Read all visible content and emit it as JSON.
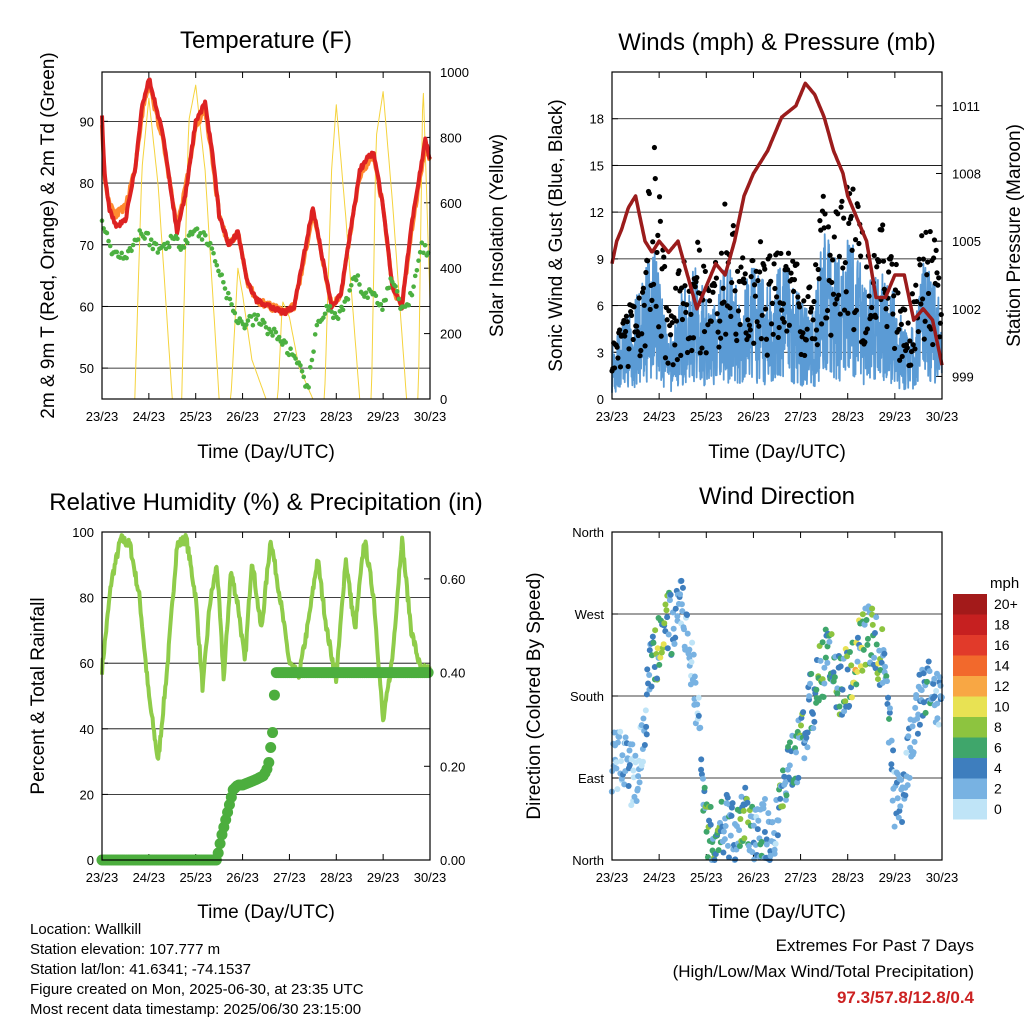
{
  "chart_data": [
    {
      "type": "line",
      "title": "Temperature (F)",
      "xlabel": "Time (Day/UTC)",
      "ylabel": "2m & 9m T (Red, Orange) & 2m Td (Green)",
      "ylabel_right": "Solar Insolation (Yellow)",
      "x_ticks": [
        "23/23",
        "24/23",
        "25/23",
        "26/23",
        "27/23",
        "28/23",
        "29/23",
        "30/23"
      ],
      "ylim": [
        45,
        98
      ],
      "yticks": [
        50,
        60,
        70,
        80,
        90
      ],
      "ylim_right": [
        0,
        1000
      ],
      "yticks_right": [
        0,
        200,
        400,
        600,
        800,
        1000
      ],
      "colors": {
        "t2m": "#dd2222",
        "t9m": "#ff8a30",
        "td": "#4cb040",
        "solar": "#f5d33d"
      },
      "series": [
        {
          "name": "2m T",
          "x": [
            0,
            0.05,
            0.15,
            0.3,
            0.5,
            0.7,
            0.85,
            1.0,
            1.3,
            1.6,
            1.8,
            2.0,
            2.2,
            2.35,
            2.5,
            2.7,
            2.9,
            3.1,
            3.3,
            3.6,
            3.9,
            4.1,
            4.3,
            4.5,
            4.7,
            4.9,
            5.1,
            5.3,
            5.5,
            5.65,
            5.8,
            6.0,
            6.2,
            6.4,
            6.6,
            6.75,
            6.9,
            7.0
          ],
          "values": [
            91,
            82,
            76,
            73,
            74,
            82,
            92,
            97,
            88,
            72,
            79,
            90,
            93,
            85,
            75,
            70,
            72,
            64,
            61,
            60,
            59,
            60,
            68,
            76,
            68,
            60,
            62,
            72,
            82,
            84,
            85,
            76,
            63,
            60,
            73,
            80,
            87,
            84
          ]
        },
        {
          "name": "9m T",
          "x": [
            0,
            0.05,
            0.15,
            0.3,
            0.5,
            0.7,
            0.85,
            1.0,
            1.3,
            1.6,
            1.8,
            2.0,
            2.2,
            2.35,
            2.5,
            2.7,
            2.9,
            3.1,
            3.3,
            3.6,
            3.9,
            4.1,
            4.3,
            4.5,
            4.7,
            4.9,
            5.1,
            5.3,
            5.5,
            5.65,
            5.8,
            6.0,
            6.2,
            6.4,
            6.6,
            6.75,
            6.9,
            7.0
          ],
          "values": [
            90,
            81,
            77,
            75,
            76,
            82,
            91,
            96,
            87,
            73,
            80,
            89,
            92,
            84,
            75,
            70,
            72,
            64,
            61,
            60,
            59,
            60,
            67,
            75,
            68,
            60,
            62,
            72,
            81,
            83,
            84,
            76,
            63,
            60,
            72,
            79,
            86,
            84
          ]
        },
        {
          "name": "2m Td",
          "x": [
            0,
            0.15,
            0.35,
            0.6,
            0.8,
            1.0,
            1.2,
            1.5,
            1.7,
            1.9,
            2.1,
            2.3,
            2.5,
            2.8,
            3.0,
            3.3,
            3.6,
            3.9,
            4.2,
            4.4,
            4.6,
            4.8,
            5.0,
            5.2,
            5.4,
            5.6,
            5.8,
            6.0,
            6.2,
            6.4,
            6.6,
            6.8,
            7.0
          ],
          "values": [
            74,
            70,
            68,
            69,
            72,
            71,
            69,
            71,
            70,
            72,
            72,
            70,
            66,
            59,
            57,
            58,
            56,
            54,
            50,
            47,
            57,
            60,
            58,
            60,
            65,
            62,
            62,
            60,
            65,
            59,
            62,
            70,
            68
          ]
        },
        {
          "name": "Solar",
          "x": [
            0,
            0.15,
            0.3,
            0.5,
            0.7,
            0.85,
            1.0,
            1.2,
            1.5,
            1.7,
            1.85,
            2.0,
            2.2,
            2.5,
            2.75,
            2.9,
            3.0,
            3.2,
            3.5,
            3.75,
            3.85,
            4.0,
            4.2,
            4.5,
            4.75,
            4.9,
            5.0,
            5.2,
            5.5,
            5.75,
            5.85,
            6.0,
            6.2,
            6.5,
            6.75,
            6.85,
            7.0
          ],
          "values": [
            0,
            0,
            0,
            0,
            0,
            700,
            920,
            650,
            0,
            0,
            850,
            960,
            700,
            0,
            0,
            400,
            320,
            120,
            0,
            0,
            300,
            250,
            100,
            0,
            0,
            700,
            900,
            560,
            0,
            0,
            800,
            940,
            600,
            0,
            0,
            980,
            300
          ]
        }
      ]
    },
    {
      "type": "line",
      "title": "Winds (mph) & Pressure (mb)",
      "xlabel": "Time (Day/UTC)",
      "ylabel": "Sonic Wind & Gust (Blue, Black)",
      "ylabel_right": "Station Pressure (Maroon)",
      "x_ticks": [
        "23/23",
        "24/23",
        "25/23",
        "26/23",
        "27/23",
        "28/23",
        "29/23",
        "30/23"
      ],
      "ylim": [
        0,
        21
      ],
      "yticks": [
        0,
        3,
        6,
        9,
        12,
        15,
        18
      ],
      "ylim_right": [
        998,
        1012.5
      ],
      "yticks_right": [
        999,
        1002,
        1005,
        1008,
        1011
      ],
      "colors": {
        "wind": "#5b9bd5",
        "gust": "#000000",
        "pressure": "#9b1c1c"
      },
      "series": [
        {
          "name": "Pressure",
          "x": [
            0,
            0.1,
            0.2,
            0.35,
            0.5,
            0.7,
            0.85,
            1.0,
            1.2,
            1.4,
            1.6,
            1.8,
            2.0,
            2.2,
            2.4,
            2.6,
            2.8,
            3.0,
            3.3,
            3.6,
            3.9,
            4.1,
            4.3,
            4.5,
            4.7,
            4.9,
            5.0,
            5.2,
            5.4,
            5.6,
            5.8,
            6.0,
            6.2,
            6.4,
            6.6,
            6.8,
            7.0
          ],
          "values": [
            1004,
            1005,
            1005.5,
            1006.5,
            1007,
            1005,
            1004.5,
            1005,
            1004.5,
            1005,
            1003.5,
            1002,
            1003,
            1004,
            1003.5,
            1005,
            1007,
            1008,
            1009,
            1010.5,
            1011,
            1012,
            1011.5,
            1010.5,
            1009,
            1008,
            1007,
            1006,
            1005,
            1002.5,
            1002.5,
            1003.5,
            1003.5,
            1001.5,
            1002,
            1001.5,
            999.5
          ]
        },
        {
          "name": "Wind",
          "x": [
            0,
            0.3,
            0.6,
            0.9,
            1.2,
            1.5,
            1.8,
            2.1,
            2.4,
            2.7,
            3.0,
            3.3,
            3.6,
            3.9,
            4.2,
            4.5,
            4.8,
            5.1,
            5.4,
            5.7,
            6.0,
            6.3,
            6.6,
            6.9,
            7.0
          ],
          "values": [
            2,
            3,
            4,
            6,
            2,
            4,
            5,
            3,
            5,
            4,
            5,
            4,
            5,
            4,
            3,
            6,
            5,
            6,
            4,
            5,
            4,
            2,
            5,
            4,
            3
          ]
        },
        {
          "name": "Gust",
          "x": [
            0,
            0.3,
            0.6,
            0.9,
            1.2,
            1.5,
            1.8,
            2.1,
            2.4,
            2.7,
            3.0,
            3.3,
            3.6,
            3.9,
            4.2,
            4.5,
            4.8,
            5.1,
            5.4,
            5.7,
            6.0,
            6.3,
            6.6,
            6.9,
            7.0
          ],
          "values": [
            4,
            5,
            7,
            15,
            5,
            8,
            9,
            6,
            12,
            8,
            10,
            8,
            9,
            8,
            7,
            12,
            11,
            13,
            9,
            10,
            8,
            5,
            10,
            9,
            6
          ]
        }
      ]
    },
    {
      "type": "line",
      "title": "Relative Humidity (%) & Precipitation (in)",
      "xlabel": "Time (Day/UTC)",
      "ylabel": "Percent & Total Rainfall",
      "x_ticks": [
        "23/23",
        "24/23",
        "25/23",
        "26/23",
        "27/23",
        "28/23",
        "29/23",
        "30/23"
      ],
      "ylim": [
        0,
        100
      ],
      "yticks": [
        0,
        20,
        40,
        60,
        80,
        100
      ],
      "ylim_right": [
        0,
        0.7
      ],
      "yticks_right": [
        "0.00",
        "0.20",
        "0.40",
        "0.60"
      ],
      "colors": {
        "rh": "#8fcc4a",
        "precip": "#4cae3e"
      },
      "series": [
        {
          "name": "RH",
          "x": [
            0,
            0.2,
            0.4,
            0.6,
            0.8,
            1.0,
            1.2,
            1.4,
            1.6,
            1.8,
            2.0,
            2.15,
            2.3,
            2.45,
            2.6,
            2.75,
            2.9,
            3.05,
            3.2,
            3.4,
            3.6,
            3.8,
            4.0,
            4.2,
            4.4,
            4.6,
            4.8,
            5.0,
            5.2,
            5.4,
            5.6,
            5.8,
            6.0,
            6.2,
            6.4,
            6.6,
            6.8,
            7.0
          ],
          "values": [
            58,
            85,
            98,
            96,
            80,
            50,
            30,
            60,
            96,
            98,
            80,
            52,
            78,
            90,
            55,
            88,
            78,
            60,
            92,
            70,
            98,
            80,
            60,
            56,
            72,
            92,
            70,
            55,
            92,
            70,
            98,
            80,
            42,
            62,
            98,
            70,
            58,
            58
          ]
        },
        {
          "name": "Precipitation",
          "x": [
            0,
            1.0,
            2.0,
            2.45,
            2.55,
            2.8,
            2.9,
            3.0,
            3.25,
            3.45,
            3.55,
            3.65,
            3.7,
            4.0,
            5.0,
            6.0,
            7.0
          ],
          "values": [
            0,
            0,
            0,
            0,
            0.05,
            0.15,
            0.16,
            0.16,
            0.17,
            0.18,
            0.2,
            0.28,
            0.4,
            0.4,
            0.4,
            0.4,
            0.4
          ]
        }
      ]
    },
    {
      "type": "scatter",
      "title": "Wind Direction",
      "xlabel": "Time (Day/UTC)",
      "ylabel": "Direction (Colored By Speed)",
      "x_ticks": [
        "23/23",
        "24/23",
        "25/23",
        "26/23",
        "27/23",
        "28/23",
        "29/23",
        "30/23"
      ],
      "y_categories": [
        "North",
        "East",
        "South",
        "West",
        "North"
      ],
      "ylim": [
        0,
        360
      ],
      "legend_title": "mph",
      "legend_labels": [
        "20+",
        "18",
        "16",
        "14",
        "12",
        "10",
        "8",
        "6",
        "4",
        "2",
        "0"
      ],
      "legend_colors": [
        "#a31a1a",
        "#c62020",
        "#e13a2a",
        "#f2692c",
        "#f8a744",
        "#e8e253",
        "#8dc43f",
        "#3fa66b",
        "#3e7ebe",
        "#78b2e2",
        "#bfe4f7"
      ],
      "series": [
        {
          "name": "Direction",
          "x": [
            0.1,
            0.3,
            0.5,
            0.7,
            0.8,
            0.9,
            1.0,
            1.1,
            1.3,
            1.5,
            1.8,
            2.0,
            2.2,
            2.4,
            2.6,
            2.8,
            3.0,
            3.2,
            3.4,
            3.6,
            3.8,
            4.0,
            4.2,
            4.4,
            4.6,
            4.8,
            5.0,
            5.2,
            5.4,
            5.6,
            5.8,
            6.0,
            6.2,
            6.4,
            6.6,
            6.8,
            7.0
          ],
          "values": [
            110,
            100,
            90,
            150,
            200,
            220,
            240,
            260,
            260,
            280,
            180,
            30,
            20,
            40,
            25,
            60,
            20,
            40,
            20,
            70,
            100,
            130,
            170,
            200,
            230,
            190,
            200,
            230,
            250,
            240,
            210,
            60,
            80,
            150,
            190,
            180,
            170
          ],
          "speed": [
            2,
            3,
            2,
            3,
            5,
            7,
            8,
            9,
            4,
            3,
            2,
            6,
            7,
            5,
            4,
            8,
            4,
            6,
            3,
            7,
            5,
            6,
            4,
            7,
            5,
            8,
            9,
            10,
            6,
            8,
            5,
            3,
            4,
            2,
            5,
            4,
            3
          ]
        }
      ]
    }
  ],
  "footer": {
    "location": "Location: Wallkill",
    "elevation": "Station elevation: 107.777 m",
    "latlon": "Station lat/lon: 41.6341; -74.1537",
    "created": "Figure created on Mon, 2025-06-30, at 23:35 UTC",
    "recent": "Most recent data timestamp: 2025/06/30 23:15:00"
  },
  "extremes": {
    "heading": "Extremes For Past 7 Days",
    "subheading": "(High/Low/Max Wind/Total Precipitation)",
    "values": "97.3/57.8/12.8/0.4"
  }
}
